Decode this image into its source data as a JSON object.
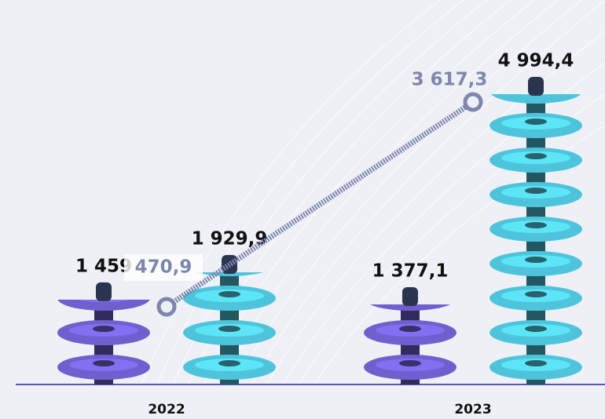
{
  "chart_data": {
    "type": "bar",
    "categories": [
      "2022",
      "2023"
    ],
    "series": [
      {
        "color": "#6f5fcf",
        "values": [
          1459,
          1377.1
        ],
        "value_labels": [
          "1 459",
          "1 377,1"
        ]
      },
      {
        "color": "#4ec4dc",
        "values": [
          1929.9,
          4994.4
        ],
        "value_labels": [
          "1 929,9",
          "4 994,4"
        ]
      },
      {
        "type": "line",
        "color": "#7d86ad",
        "values": [
          470.9,
          3617.3
        ],
        "value_labels": [
          "470,9",
          "3 617,3"
        ]
      }
    ]
  }
}
